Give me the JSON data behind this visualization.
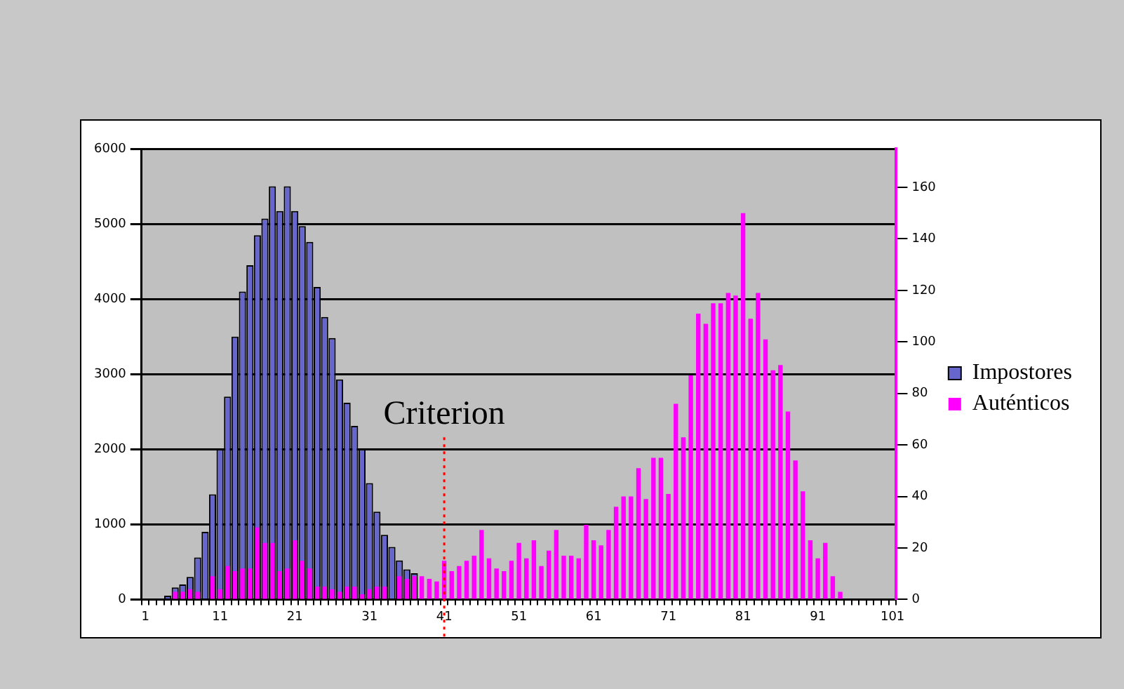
{
  "chart_data": {
    "type": "bar",
    "categories": [
      "1",
      null,
      null,
      null,
      null,
      null,
      null,
      null,
      null,
      null,
      "11",
      null,
      null,
      null,
      null,
      null,
      null,
      null,
      null,
      null,
      "21",
      null,
      null,
      null,
      null,
      null,
      null,
      null,
      null,
      null,
      "31",
      null,
      null,
      null,
      null,
      null,
      null,
      null,
      null,
      null,
      "41",
      null,
      null,
      null,
      null,
      null,
      null,
      null,
      null,
      null,
      "51",
      null,
      null,
      null,
      null,
      null,
      null,
      null,
      null,
      null,
      "61",
      null,
      null,
      null,
      null,
      null,
      null,
      null,
      null,
      null,
      "71",
      null,
      null,
      null,
      null,
      null,
      null,
      null,
      null,
      null,
      "81",
      null,
      null,
      null,
      null,
      null,
      null,
      null,
      null,
      null,
      "91",
      null,
      null,
      null,
      null,
      null,
      null,
      null,
      null,
      null,
      "101"
    ],
    "series": [
      {
        "name": "Impostores",
        "color": "#6666cc",
        "values": [
          0,
          0,
          0,
          50,
          160,
          200,
          300,
          560,
          900,
          1400,
          2000,
          2700,
          3500,
          4100,
          4450,
          4850,
          5070,
          5500,
          5170,
          5500,
          5170,
          4970,
          4760,
          4160,
          3760,
          3480,
          2930,
          2620,
          2310,
          2000,
          1550,
          1170,
          860,
          700,
          520,
          400,
          350,
          0,
          0,
          0,
          0,
          0,
          0,
          0,
          0,
          0,
          0,
          0,
          0,
          0,
          0,
          0,
          0,
          0,
          0,
          0,
          0,
          0,
          0,
          0,
          0,
          0,
          0,
          0,
          0,
          0,
          0,
          0,
          0,
          0,
          0,
          0,
          0,
          0,
          0,
          0,
          0,
          0,
          0,
          0,
          0,
          0,
          0,
          0,
          0,
          0,
          0,
          0,
          0,
          0,
          0,
          0,
          0,
          0,
          0,
          0,
          0,
          0,
          0,
          0,
          0
        ]
      },
      {
        "name": "Auténticos",
        "color": "#ff00ff",
        "axis": "y2",
        "values": [
          0,
          0,
          0,
          0,
          3,
          3,
          4,
          3,
          0,
          9,
          4,
          13,
          11,
          12,
          12,
          28,
          22,
          22,
          11,
          12,
          23,
          15,
          12,
          5,
          5,
          4,
          3,
          5,
          5,
          2,
          4,
          5,
          5,
          0,
          9,
          8,
          9,
          9,
          8,
          7,
          15,
          11,
          13,
          15,
          17,
          27,
          16,
          12,
          11,
          15,
          22,
          16,
          23,
          13,
          19,
          27,
          17,
          17,
          16,
          29,
          23,
          21,
          27,
          36,
          40,
          40,
          51,
          39,
          55,
          55,
          41,
          76,
          63,
          87,
          111,
          107,
          115,
          115,
          119,
          118,
          150,
          109,
          119,
          101,
          89,
          91,
          73,
          54,
          42,
          23,
          16,
          22,
          9,
          3,
          0,
          0,
          0,
          0,
          0,
          0,
          0
        ]
      }
    ],
    "ylim": [
      0,
      6000
    ],
    "yticks": [
      0,
      1000,
      2000,
      3000,
      4000,
      5000,
      6000
    ],
    "y2lim": [
      0,
      175
    ],
    "y2ticks": [
      0,
      20,
      40,
      60,
      80,
      100,
      120,
      140,
      160
    ],
    "grid": "y",
    "legend": "right",
    "ref_lines": [
      {
        "axis": "x",
        "value": "41",
        "label": "Criterion",
        "color": "#ff0000",
        "line_style": "dotted"
      }
    ]
  }
}
